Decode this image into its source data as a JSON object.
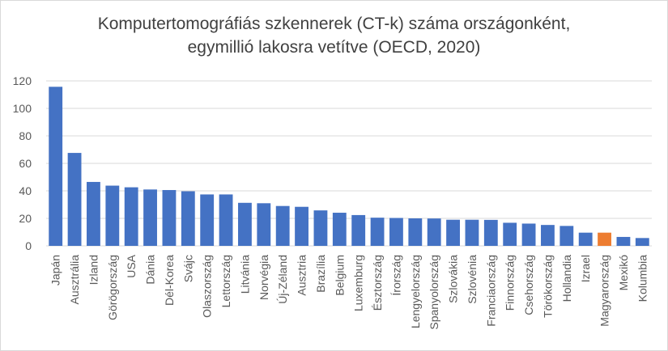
{
  "chart_data": {
    "type": "bar",
    "title": "Komputertomográfiás szkennerek (CT-k) száma országonként,",
    "subtitle": "egymillió lakosra vetítve (OECD, 2020)",
    "xlabel": "",
    "ylabel": "",
    "ylim": [
      0,
      120
    ],
    "yticks": [
      "0",
      "20",
      "40",
      "60",
      "80",
      "100",
      "120"
    ],
    "grid": true,
    "legend": "none",
    "categories": [
      "Japán",
      "Ausztrália",
      "Izland",
      "Görögország",
      "USA",
      "Dánia",
      "Dél-Korea",
      "Svájc",
      "Olaszország",
      "Lettország",
      "Litvánia",
      "Norvégia",
      "Új-Zéland",
      "Ausztria",
      "Brazília",
      "Belgium",
      "Luxemburg",
      "Észtország",
      "Írország",
      "Lengyelország",
      "Spanyolország",
      "Szlovákia",
      "Szlovénia",
      "Franciaország",
      "Finnország",
      "Csehország",
      "Törökország",
      "Hollandia",
      "Izrael",
      "Magyarország",
      "Mexikó",
      "Kolumbia"
    ],
    "values": [
      115.7,
      67.6,
      46.5,
      43.8,
      42.6,
      41.0,
      40.6,
      39.7,
      37.4,
      37.4,
      31.3,
      31.0,
      29.0,
      28.4,
      25.8,
      24.1,
      22.4,
      20.5,
      20.3,
      20.0,
      19.9,
      19.0,
      19.0,
      18.9,
      16.8,
      16.2,
      15.2,
      14.5,
      9.6,
      9.6,
      6.5,
      5.7
    ],
    "colors": {
      "default": "#4472c4",
      "highlight": "#ed7d31",
      "grid": "#d9d9d9",
      "text": "#595959",
      "title": "#404040"
    },
    "highlight_category": "Magyarország"
  }
}
